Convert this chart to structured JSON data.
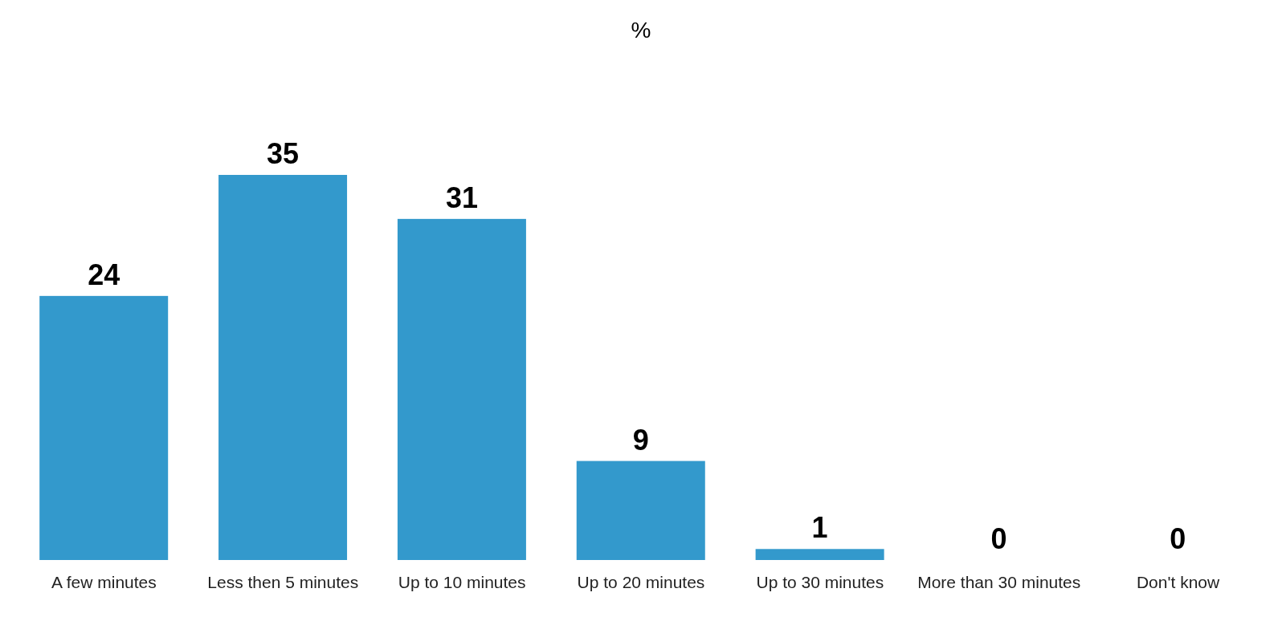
{
  "chart_data": {
    "type": "bar",
    "title": "%",
    "categories": [
      "A few minutes",
      "Less then 5 minutes",
      "Up to 10 minutes",
      "Up to 20 minutes",
      "Up to 30 minutes",
      "More than 30 minutes",
      "Don't know"
    ],
    "values": [
      24,
      35,
      31,
      9,
      1,
      0,
      0
    ],
    "color": "#3399cc",
    "data_labels": true
  }
}
